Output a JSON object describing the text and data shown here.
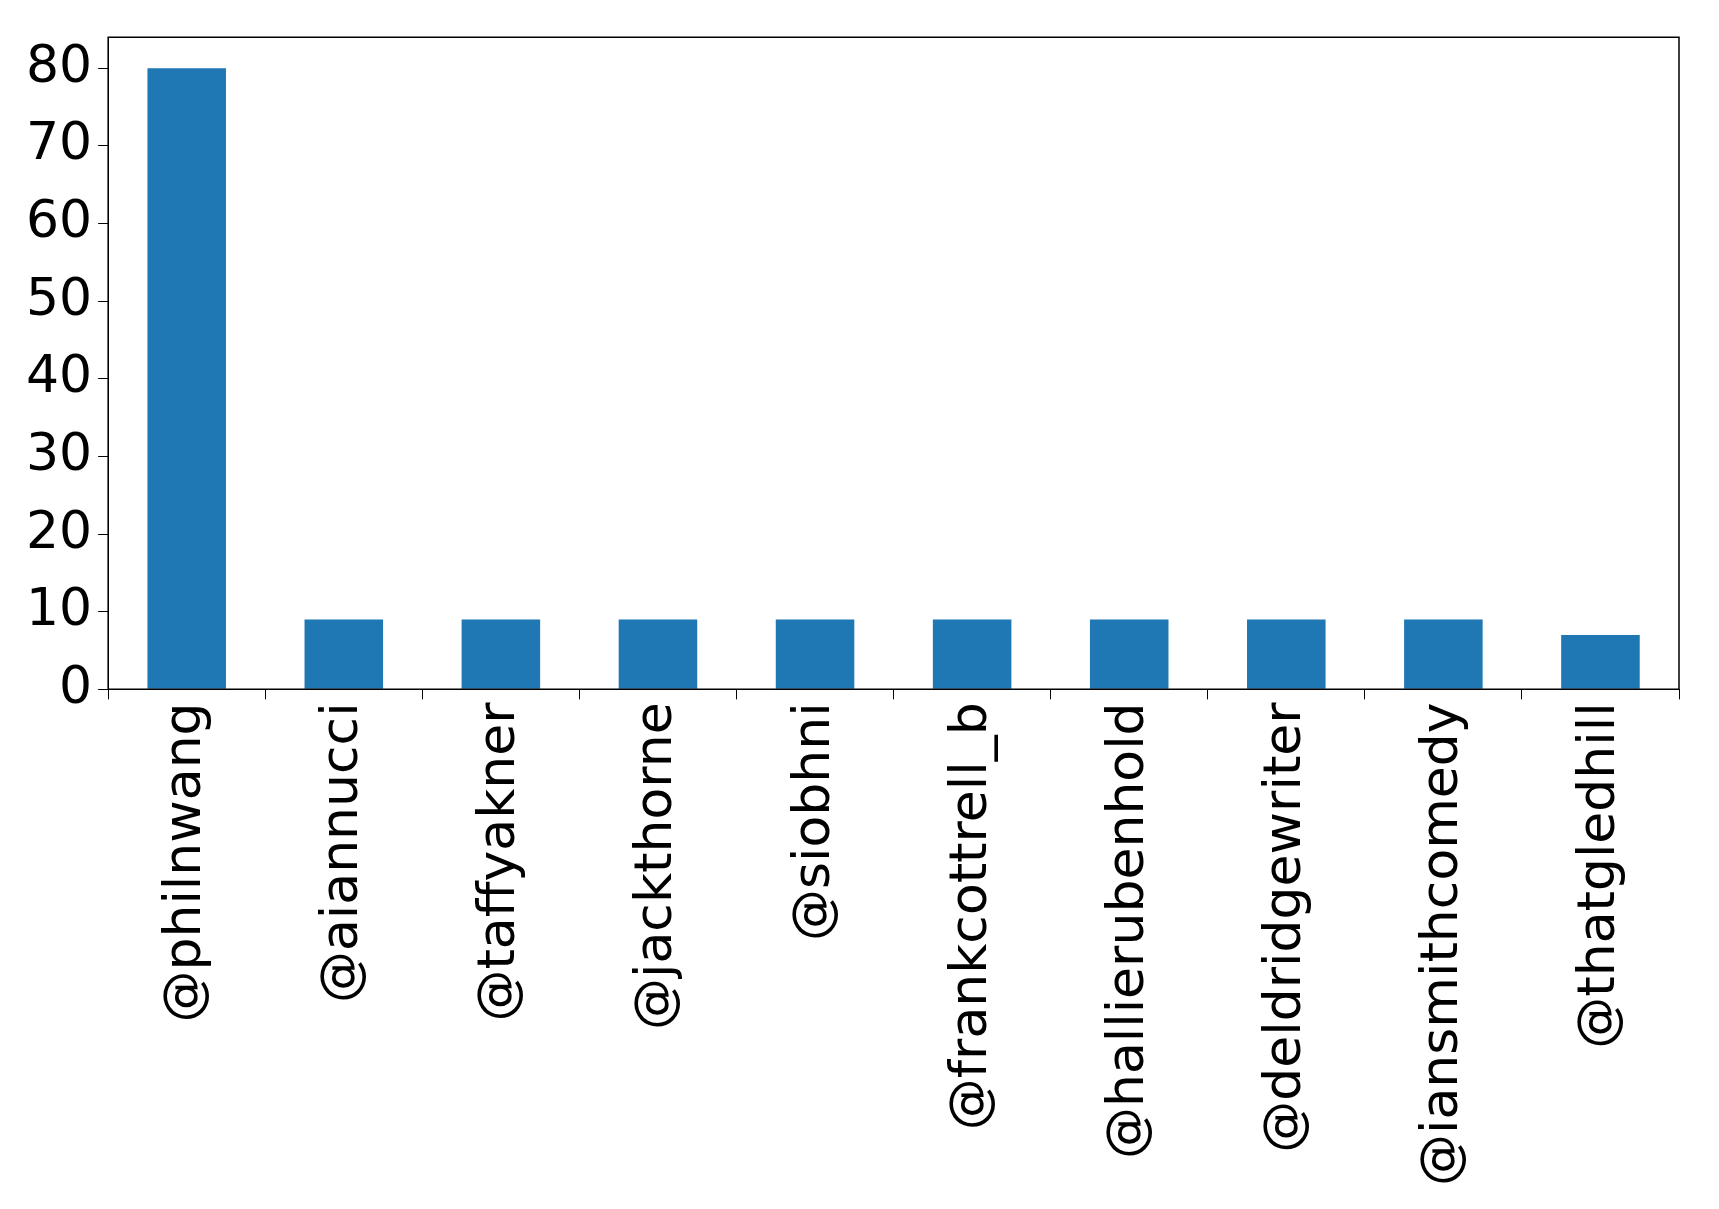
{
  "chart_data": {
    "type": "bar",
    "categories": [
      "@philnwang",
      "@aiannucci",
      "@taffyakner",
      "@jackthorne",
      "@siobhni",
      "@frankcottrell_b",
      "@hallierubenhold",
      "@deldridgewriter",
      "@iansmithcomedy",
      "@thatgledhill"
    ],
    "values": [
      80,
      9,
      9,
      9,
      9,
      9,
      9,
      9,
      9,
      7
    ],
    "color": "#1f77b4",
    "ylim": [
      0,
      84
    ],
    "yticks": [
      0,
      10,
      20,
      30,
      40,
      50,
      60,
      70,
      80
    ],
    "grid": false,
    "legend": false
  }
}
